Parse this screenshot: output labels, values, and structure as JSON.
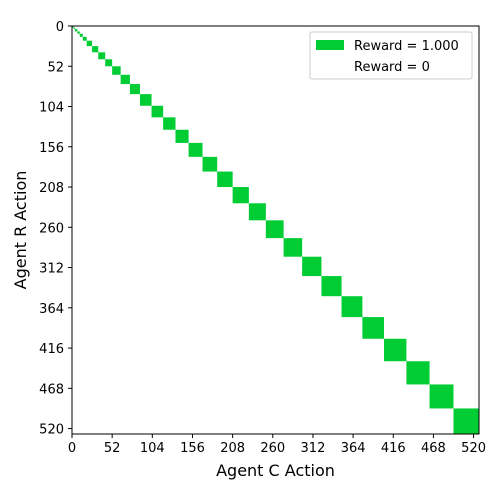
{
  "chart_data": {
    "type": "heatmap",
    "title": "",
    "xlabel": "Agent C Action",
    "ylabel": "Agent R Action",
    "xlim": [
      0,
      527
    ],
    "ylim": [
      527,
      0
    ],
    "xticks": [
      0,
      52,
      104,
      156,
      208,
      260,
      312,
      364,
      416,
      468,
      520
    ],
    "yticks": [
      0,
      52,
      104,
      156,
      208,
      260,
      312,
      364,
      416,
      468,
      520
    ],
    "reward_color": "#00cc33",
    "zero_color": "#ffffff",
    "legend": {
      "placement": "top-right",
      "entries": [
        {
          "label": "Reward = 1.000",
          "color": "#00cc33"
        },
        {
          "label": "Reward = 0",
          "color": "#ffffff"
        }
      ]
    },
    "diagonal_blocks": [
      {
        "start": 0,
        "end": 2
      },
      {
        "start": 2,
        "end": 4
      },
      {
        "start": 4,
        "end": 7
      },
      {
        "start": 7,
        "end": 10
      },
      {
        "start": 10,
        "end": 14
      },
      {
        "start": 14,
        "end": 19
      },
      {
        "start": 19,
        "end": 26
      },
      {
        "start": 26,
        "end": 34
      },
      {
        "start": 34,
        "end": 43
      },
      {
        "start": 43,
        "end": 52
      },
      {
        "start": 52,
        "end": 63
      },
      {
        "start": 63,
        "end": 75
      },
      {
        "start": 75,
        "end": 88
      },
      {
        "start": 88,
        "end": 103
      },
      {
        "start": 103,
        "end": 118
      },
      {
        "start": 118,
        "end": 134
      },
      {
        "start": 134,
        "end": 151
      },
      {
        "start": 151,
        "end": 169
      },
      {
        "start": 169,
        "end": 188
      },
      {
        "start": 188,
        "end": 208
      },
      {
        "start": 208,
        "end": 229
      },
      {
        "start": 229,
        "end": 251
      },
      {
        "start": 251,
        "end": 274
      },
      {
        "start": 274,
        "end": 298
      },
      {
        "start": 298,
        "end": 323
      },
      {
        "start": 323,
        "end": 349
      },
      {
        "start": 349,
        "end": 376
      },
      {
        "start": 376,
        "end": 404
      },
      {
        "start": 404,
        "end": 433
      },
      {
        "start": 433,
        "end": 463
      },
      {
        "start": 463,
        "end": 494
      },
      {
        "start": 494,
        "end": 527
      }
    ]
  }
}
